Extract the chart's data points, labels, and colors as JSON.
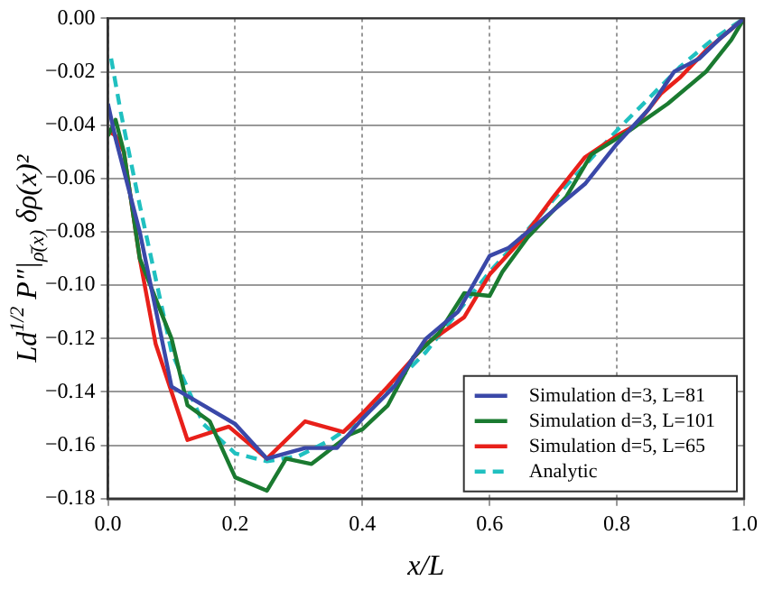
{
  "chart_data": {
    "type": "line",
    "xlabel": "x/L",
    "ylabel": "Ld$^{1/2}$ P″|$_{ρ̄(x)}$ δρ(x)²",
    "xlim": [
      0,
      1
    ],
    "ylim": [
      -0.18,
      0
    ],
    "xticks": [
      {
        "value": 0,
        "label": "0.0"
      },
      {
        "value": 0.2,
        "label": "0.2"
      },
      {
        "value": 0.4,
        "label": "0.4"
      },
      {
        "value": 0.6,
        "label": "0.6"
      },
      {
        "value": 0.8,
        "label": "0.8"
      },
      {
        "value": 1,
        "label": "1.0"
      }
    ],
    "yticks": [
      {
        "value": -0.18,
        "label": "−0.18"
      },
      {
        "value": -0.16,
        "label": "−0.16"
      },
      {
        "value": -0.14,
        "label": "−0.14"
      },
      {
        "value": -0.12,
        "label": "−0.12"
      },
      {
        "value": -0.1,
        "label": "−0.10"
      },
      {
        "value": -0.08,
        "label": "−0.08"
      },
      {
        "value": -0.06,
        "label": "−0.06"
      },
      {
        "value": -0.04,
        "label": "−0.04"
      },
      {
        "value": -0.02,
        "label": "−0.02"
      },
      {
        "value": 0,
        "label": "0.00"
      }
    ],
    "grid": true,
    "legend": "bottom right",
    "marker": "none",
    "series": [
      {
        "name": "Simulation d=3, L=81",
        "color": "#3a48a8",
        "line_style": "solid",
        "x": [
          0,
          0.012,
          0.05,
          0.1,
          0.2,
          0.25,
          0.31,
          0.36,
          0.4,
          0.45,
          0.5,
          0.55,
          0.6,
          0.63,
          0.7,
          0.75,
          0.8,
          0.85,
          0.89,
          0.93,
          0.96,
          1
        ],
        "values": [
          -0.032,
          -0.045,
          -0.08,
          -0.138,
          -0.152,
          -0.165,
          -0.161,
          -0.161,
          -0.15,
          -0.138,
          -0.12,
          -0.11,
          -0.089,
          -0.086,
          -0.072,
          -0.062,
          -0.047,
          -0.034,
          -0.02,
          -0.015,
          -0.008,
          0
        ]
      },
      {
        "name": "Simulation d=3, L=101",
        "color": "#1a7a30",
        "line_style": "solid",
        "x": [
          0,
          0.012,
          0.025,
          0.05,
          0.1,
          0.125,
          0.16,
          0.2,
          0.25,
          0.28,
          0.32,
          0.38,
          0.4,
          0.44,
          0.48,
          0.52,
          0.56,
          0.6,
          0.62,
          0.66,
          0.72,
          0.76,
          0.82,
          0.88,
          0.94,
          0.98,
          1
        ],
        "values": [
          -0.044,
          -0.038,
          -0.05,
          -0.09,
          -0.12,
          -0.145,
          -0.151,
          -0.172,
          -0.177,
          -0.165,
          -0.167,
          -0.156,
          -0.154,
          -0.145,
          -0.127,
          -0.118,
          -0.103,
          -0.104,
          -0.095,
          -0.082,
          -0.067,
          -0.051,
          -0.042,
          -0.032,
          -0.02,
          -0.008,
          0
        ]
      },
      {
        "name": "Simulation d=5, L=65",
        "color": "#e8201a",
        "line_style": "solid",
        "x": [
          0,
          0.012,
          0.025,
          0.05,
          0.075,
          0.125,
          0.19,
          0.25,
          0.31,
          0.37,
          0.4,
          0.44,
          0.5,
          0.56,
          0.6,
          0.65,
          0.7,
          0.75,
          0.8,
          0.83,
          0.87,
          0.9,
          0.94,
          0.98,
          1
        ],
        "values": [
          -0.042,
          -0.044,
          -0.05,
          -0.09,
          -0.122,
          -0.158,
          -0.153,
          -0.165,
          -0.151,
          -0.155,
          -0.148,
          -0.138,
          -0.122,
          -0.112,
          -0.096,
          -0.083,
          -0.067,
          -0.052,
          -0.044,
          -0.04,
          -0.028,
          -0.022,
          -0.012,
          -0.004,
          0
        ]
      },
      {
        "name": "Analytic",
        "color": "#20c0c0",
        "line_style": "dashed",
        "x": [
          0.005,
          0.02,
          0.05,
          0.1,
          0.15,
          0.2,
          0.25,
          0.3,
          0.35,
          0.4,
          0.45,
          0.5,
          0.55,
          0.6,
          0.65,
          0.7,
          0.75,
          0.8,
          0.85,
          0.9,
          0.95,
          1
        ],
        "values": [
          -0.015,
          -0.035,
          -0.07,
          -0.125,
          -0.152,
          -0.163,
          -0.166,
          -0.164,
          -0.158,
          -0.15,
          -0.137,
          -0.125,
          -0.11,
          -0.095,
          -0.082,
          -0.068,
          -0.055,
          -0.042,
          -0.03,
          -0.018,
          -0.008,
          0
        ]
      }
    ]
  }
}
